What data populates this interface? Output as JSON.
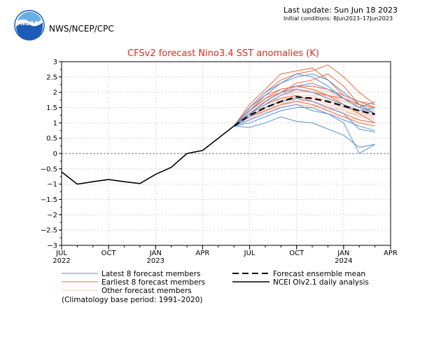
{
  "header": {
    "logo_text": "NOAA",
    "agency": "NWS/NCEP/CPC",
    "last_update": "Last update: Sun Jun 18 2023",
    "initial_conditions": "Initial conditions: 8Jun2023–17Jun2023"
  },
  "colors": {
    "latest": "#5b8fd6",
    "earliest": "#ee6a3c",
    "other": "#f4c9bd",
    "mean": "#000000",
    "analysis": "#000000",
    "title": "#e8261e",
    "grid": "#b0b0b0",
    "logo_blue": "#1e5bb8"
  },
  "chart_data": {
    "type": "line",
    "title": "CFSv2 forecast Nino3.4 SST anomalies (K)",
    "xlabel": "",
    "ylabel": "",
    "xlim": [
      0,
      21
    ],
    "ylim": [
      -3,
      3
    ],
    "yticks": [
      3,
      2.5,
      2,
      1.5,
      1,
      0.5,
      0,
      -0.5,
      -1,
      -1.5,
      -2,
      -2.5,
      -3
    ],
    "ytick_labels": [
      "3",
      "2.5",
      "2",
      "1.5",
      "1",
      "0.5",
      "0",
      "−0.5",
      "−1",
      "−1.5",
      "−2",
      "−2.5",
      "−3"
    ],
    "xticks": [
      {
        "month": 0,
        "label": "JUL",
        "year": "2022"
      },
      {
        "month": 3,
        "label": "OCT",
        "year": ""
      },
      {
        "month": 6,
        "label": "JAN",
        "year": "2023"
      },
      {
        "month": 9,
        "label": "APR",
        "year": ""
      },
      {
        "month": 12,
        "label": "JUL",
        "year": ""
      },
      {
        "month": 15,
        "label": "OCT",
        "year": ""
      },
      {
        "month": 18,
        "label": "JAN",
        "year": "2024"
      },
      {
        "month": 21,
        "label": "APR",
        "year": ""
      }
    ],
    "grid": "dotted",
    "forecast_x": [
      11,
      12,
      13,
      14,
      15,
      16,
      17,
      18,
      19,
      20
    ],
    "analysis": {
      "name": "NCEI OIv2.1 daily analysis",
      "x": [
        0,
        1,
        2,
        3,
        4,
        5,
        6,
        7,
        8,
        9,
        10,
        11
      ],
      "y": [
        -0.6,
        -1.0,
        -0.92,
        -0.85,
        -0.92,
        -0.98,
        -0.68,
        -0.45,
        0.0,
        0.1,
        0.5,
        0.9
      ]
    },
    "ensemble_mean": {
      "name": "Forecast ensemble mean",
      "y": [
        0.9,
        1.25,
        1.5,
        1.7,
        1.85,
        1.8,
        1.7,
        1.55,
        1.4,
        1.28
      ]
    },
    "latest_members": {
      "name": "Latest 8 forecast members",
      "y": [
        [
          0.9,
          0.85,
          1.0,
          1.2,
          1.05,
          1.0,
          0.8,
          0.6,
          0.2,
          0.3
        ],
        [
          0.9,
          1.1,
          1.3,
          1.5,
          1.6,
          1.4,
          1.3,
          1.0,
          0.0,
          0.3
        ],
        [
          0.9,
          1.3,
          1.6,
          1.9,
          2.1,
          2.0,
          1.8,
          1.6,
          1.4,
          1.5
        ],
        [
          0.9,
          1.4,
          1.9,
          2.3,
          2.5,
          2.6,
          2.4,
          2.0,
          1.6,
          1.3
        ],
        [
          0.9,
          1.2,
          1.5,
          1.7,
          1.8,
          1.7,
          1.5,
          1.3,
          0.8,
          0.7
        ],
        [
          0.9,
          1.5,
          2.0,
          2.3,
          2.6,
          2.5,
          2.2,
          1.8,
          1.5,
          1.7
        ],
        [
          0.9,
          1.0,
          1.2,
          1.4,
          1.5,
          1.5,
          1.3,
          1.1,
          0.9,
          0.75
        ],
        [
          0.9,
          1.3,
          1.7,
          2.0,
          2.2,
          2.3,
          2.1,
          1.8,
          1.5,
          1.3
        ]
      ]
    },
    "earliest_members": {
      "name": "Earliest 8 forecast members",
      "y": [
        [
          0.9,
          1.6,
          2.1,
          2.6,
          2.7,
          2.8,
          2.4,
          1.9,
          1.7,
          1.5
        ],
        [
          0.9,
          1.5,
          2.0,
          2.4,
          2.6,
          2.7,
          2.9,
          2.5,
          2.0,
          1.6
        ],
        [
          0.9,
          1.3,
          1.7,
          2.0,
          2.3,
          2.4,
          2.6,
          2.2,
          1.6,
          1.3
        ],
        [
          0.9,
          1.4,
          1.8,
          2.1,
          2.2,
          2.1,
          1.9,
          1.6,
          1.3,
          1.0
        ],
        [
          0.9,
          1.2,
          1.4,
          1.6,
          1.7,
          1.6,
          1.4,
          1.2,
          1.0,
          0.9
        ],
        [
          0.9,
          1.5,
          1.9,
          2.1,
          2.2,
          2.2,
          2.1,
          1.9,
          1.7,
          1.6
        ],
        [
          0.9,
          1.3,
          1.6,
          1.8,
          1.9,
          1.7,
          1.5,
          1.3,
          1.1,
          1.0
        ],
        [
          0.9,
          1.4,
          1.8,
          2.0,
          2.1,
          2.0,
          1.9,
          1.8,
          1.6,
          1.5
        ]
      ]
    },
    "other_members": {
      "name": "Other forecast members",
      "y": [
        [
          0.9,
          1.2,
          1.5,
          1.7,
          1.9,
          1.9,
          1.7,
          1.6,
          1.4,
          1.3
        ],
        [
          0.9,
          1.3,
          1.6,
          1.9,
          2.0,
          2.0,
          1.8,
          1.6,
          1.5,
          1.4
        ],
        [
          0.9,
          1.1,
          1.4,
          1.6,
          1.7,
          1.6,
          1.5,
          1.4,
          1.2,
          1.1
        ],
        [
          0.9,
          1.4,
          1.7,
          1.8,
          1.9,
          1.9,
          1.9,
          1.7,
          1.6,
          1.5
        ],
        [
          0.9,
          1.2,
          1.4,
          1.5,
          1.6,
          1.5,
          1.3,
          1.2,
          1.1,
          1.0
        ],
        [
          0.9,
          1.3,
          1.6,
          1.8,
          2.0,
          2.1,
          2.0,
          1.8,
          1.6,
          1.4
        ],
        [
          0.9,
          1.25,
          1.5,
          1.75,
          1.85,
          1.8,
          1.65,
          1.5,
          1.35,
          1.2
        ],
        [
          0.9,
          1.35,
          1.65,
          1.9,
          2.05,
          2.0,
          1.85,
          1.7,
          1.5,
          1.35
        ],
        [
          0.9,
          1.15,
          1.35,
          1.55,
          1.7,
          1.75,
          1.6,
          1.45,
          1.3,
          1.2
        ],
        [
          0.9,
          1.3,
          1.55,
          1.65,
          1.75,
          1.7,
          1.55,
          1.4,
          1.25,
          1.15
        ],
        [
          0.9,
          1.45,
          1.8,
          2.0,
          2.1,
          2.05,
          1.9,
          1.75,
          1.55,
          1.45
        ],
        [
          0.9,
          1.2,
          1.45,
          1.6,
          1.8,
          1.85,
          1.75,
          1.55,
          1.35,
          1.25
        ],
        [
          0.9,
          1.1,
          1.3,
          1.5,
          1.6,
          1.55,
          1.45,
          1.35,
          1.25,
          1.15
        ],
        [
          0.9,
          1.4,
          1.75,
          1.95,
          2.15,
          2.2,
          2.05,
          1.85,
          1.6,
          1.5
        ]
      ]
    },
    "footnote": "(Climatology base period: 1991–2020)"
  }
}
